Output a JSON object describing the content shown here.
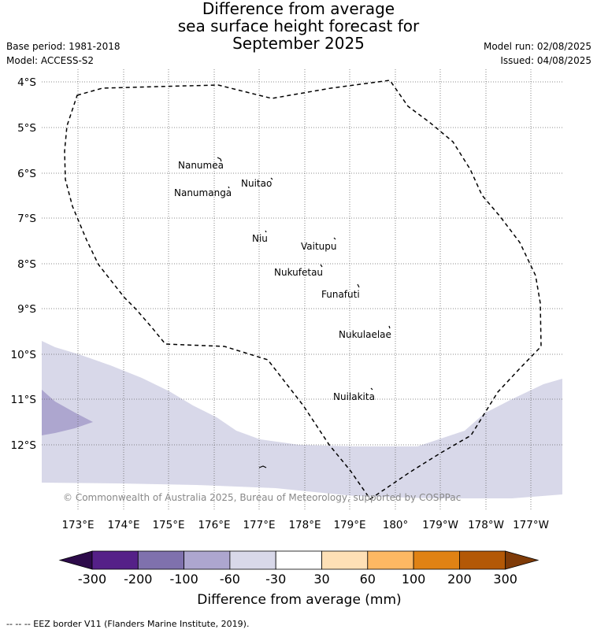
{
  "header": {
    "title_line1": "Difference from average",
    "title_line2": "sea surface height forecast for",
    "title_line3": "September 2025",
    "base_period": "Base period: 1981-2018",
    "model": "Model: ACCESS-S2",
    "model_run": "Model run: 02/08/2025",
    "issued": "Issued: 04/08/2025"
  },
  "map": {
    "lat_labels": [
      "4°S",
      "5°S",
      "6°S",
      "7°S",
      "8°S",
      "9°S",
      "10°S",
      "11°S",
      "12°S"
    ],
    "lon_labels": [
      "173°E",
      "174°E",
      "175°E",
      "176°E",
      "177°E",
      "178°E",
      "179°E",
      "180°",
      "179°W",
      "178°W",
      "177°W"
    ],
    "islands": [
      {
        "name": "Nanumea"
      },
      {
        "name": "Nuitao"
      },
      {
        "name": "Nanumanga"
      },
      {
        "name": "Niu"
      },
      {
        "name": "Vaitupu"
      },
      {
        "name": "Nukufetau"
      },
      {
        "name": "Funafuti"
      },
      {
        "name": "Nukulaelae"
      },
      {
        "name": "Nuilakita"
      }
    ],
    "copyright": "© Commonwealth of Australia 2025, Bureau of Meteorology, supported by COSPPac",
    "colors": {
      "light_lavender": "#d8d8e9",
      "medium_lavender": "#ada6cf",
      "eez_line": "#000000"
    }
  },
  "colorbar": {
    "ticks": [
      "-300",
      "-200",
      "-100",
      "-60",
      "-30",
      "30",
      "60",
      "100",
      "200",
      "300"
    ],
    "colors": [
      "#2d0b4a",
      "#552088",
      "#7f71ad",
      "#ada6cf",
      "#d8d8e9",
      "#ffffff",
      "#fee0b6",
      "#fdb863",
      "#e08214",
      "#b35806",
      "#7f3b08"
    ],
    "label": "Difference from average (mm)"
  },
  "legend": {
    "eez_note": "--  --  -- EEZ border V11 (Flanders Marine Institute, 2019)."
  }
}
